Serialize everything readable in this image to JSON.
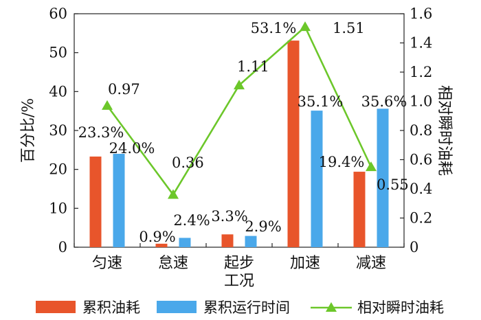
{
  "chart_data": {
    "type": "bar",
    "categories": [
      "匀速",
      "怠速",
      "起步",
      "加速",
      "减速"
    ],
    "series": [
      {
        "name": "累积油耗",
        "type": "bar",
        "axis": "left",
        "color": "#e8552b",
        "values": [
          23.3,
          0.9,
          3.3,
          53.1,
          19.4
        ],
        "labels": [
          "23.3%",
          "0.9%",
          "3.3%",
          "53.1%",
          "19.4%"
        ]
      },
      {
        "name": "累积运行时间",
        "type": "bar",
        "axis": "left",
        "color": "#4aa8ea",
        "values": [
          24.0,
          2.4,
          2.9,
          35.1,
          35.6
        ],
        "labels": [
          "24.0%",
          "2.4%",
          "2.9%",
          "35.1%",
          "35.6%"
        ]
      },
      {
        "name": "相对瞬时油耗",
        "type": "line",
        "axis": "right",
        "color": "#6cc72a",
        "marker": "triangle",
        "values": [
          0.97,
          0.36,
          1.11,
          1.51,
          0.55
        ],
        "labels": [
          "0.97",
          "0.36",
          "1.11",
          "1.51",
          "0.55"
        ]
      }
    ],
    "xlabel": "工况",
    "ylabel": "百分比/%",
    "y2label": "相对瞬时油耗",
    "ylim": [
      0,
      60
    ],
    "y2lim": [
      0,
      1.6
    ],
    "yticks": [
      0,
      10,
      20,
      30,
      40,
      50,
      60
    ],
    "y2ticks": [
      "0",
      "0.2",
      "0.4",
      "0.6",
      "0.8",
      "1.0",
      "1.2",
      "1.4",
      "1.6"
    ],
    "grid": false,
    "legend_position": "bottom"
  }
}
